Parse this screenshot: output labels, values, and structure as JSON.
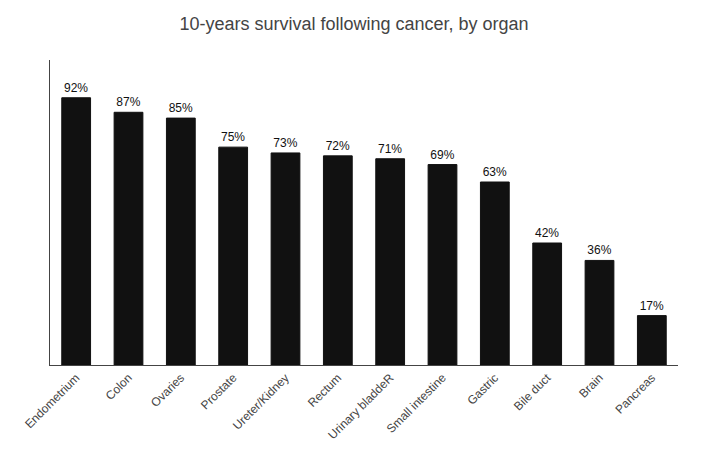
{
  "chart_data": {
    "type": "bar",
    "title": "10-years survival following cancer, by organ",
    "categories": [
      "Endometrium",
      "Colon",
      "Ovaries",
      "Prostate",
      "Ureter/Kidney",
      "Rectum",
      "Urinary bladdeR",
      "Small intestine",
      "Gastric",
      "Bile duct",
      "Brain",
      "Pancreas"
    ],
    "values": [
      92,
      87,
      85,
      75,
      73,
      72,
      71,
      69,
      63,
      42,
      36,
      17
    ],
    "value_labels": [
      "92%",
      "87%",
      "85%",
      "75%",
      "73%",
      "72%",
      "71%",
      "69%",
      "63%",
      "42%",
      "36%",
      "17%"
    ],
    "color": "#111111",
    "ylim": [
      0,
      105
    ],
    "grid": false,
    "data_labels": true,
    "tick_labels": "x"
  }
}
